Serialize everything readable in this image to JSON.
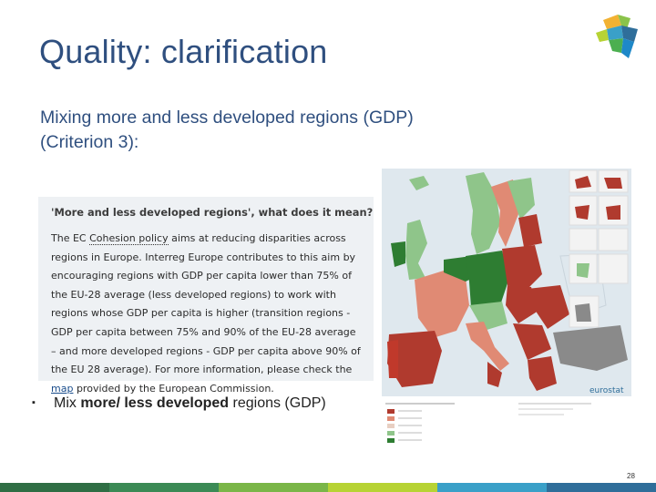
{
  "slide": {
    "title": "Quality: clarification",
    "subtitle_line1": "Mixing more and less developed regions (GDP)",
    "subtitle_line2": "(Criterion 3):",
    "page_number": "28"
  },
  "infobox": {
    "heading": "'More and less developed regions', what does it mean?",
    "p1": "The EC ",
    "cohesion": "Cohesion policy",
    "p2": " aims at reducing disparities across regions in Europe. Interreg Europe contributes to this aim by encouraging regions with GDP per capita lower than 75% of the EU-28 average (less developed regions) to work with regions whose GDP per capita is higher (transition regions - GDP per capita between 75% and 90% of the EU-28 average – and more developed regions - GDP per capita above 90% of the EU 28 average). For more information, please check the ",
    "map_link": "map",
    "p3": " provided by the European Commission."
  },
  "bullet": {
    "marker": "▪",
    "prefix": "Mix ",
    "bold": "more/ less developed",
    "suffix": " regions (GDP)"
  },
  "map": {
    "brand": "eurostat"
  },
  "colors": {
    "title": "#2f4f7f",
    "dark_red": "#b03a2e",
    "light_red": "#e08a74",
    "dark_green": "#2e7d32",
    "light_green": "#8fc58a",
    "grey": "#8a8a8a",
    "footer_segments": [
      "#2f6e44",
      "#3b8a55",
      "#7ab648",
      "#b7d334",
      "#3aa0c8",
      "#2f6e9a"
    ]
  }
}
